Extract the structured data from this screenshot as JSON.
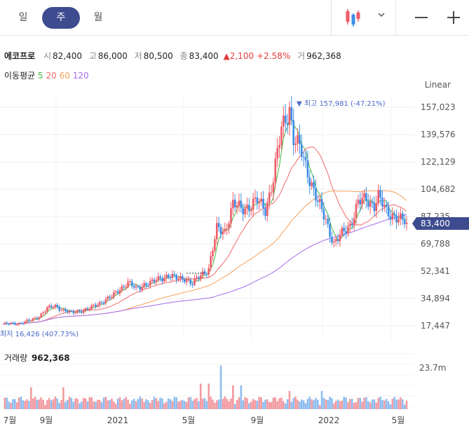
{
  "tabs": [
    {
      "label": "일",
      "active": false
    },
    {
      "label": "주",
      "active": true
    },
    {
      "label": "월",
      "active": false
    }
  ],
  "toolbar": {
    "chart_type_icon": "candlestick-icon",
    "dropdown_icon": "chevron-down-icon",
    "minus_label": "−",
    "plus_label": "+"
  },
  "stock": {
    "name": "에코프로",
    "open_label": "시",
    "open": "82,400",
    "high_label": "고",
    "high": "86,000",
    "low_label": "저",
    "low": "80,500",
    "close_label": "종",
    "close": "83,400",
    "change": "▲2,100",
    "change_pct": "+2.58%",
    "volume_label": "거",
    "volume": "962,368"
  },
  "ma": {
    "label": "이동평균",
    "periods": [
      "5",
      "20",
      "60",
      "120"
    ],
    "colors": [
      "#44b944",
      "#f06a6a",
      "#f5a05a",
      "#a66bef"
    ]
  },
  "scale_mode": "Linear",
  "volume_panel": {
    "label": "거래량",
    "value": "962,368"
  },
  "colors": {
    "up": "#ef5b67",
    "down": "#3f8de6",
    "accent": "#3d4b8f"
  },
  "chart_data": {
    "type": "candlestick",
    "y_ticks": [
      "157,023",
      "139,576",
      "122,129",
      "104,682",
      "87,235",
      "69,788",
      "52,341",
      "34,894",
      "17,447"
    ],
    "ylim": [
      14000,
      165000
    ],
    "x_ticks": [
      "7월",
      "9월",
      "2021",
      "5월",
      "9월",
      "2022",
      "5월"
    ],
    "high_marker": {
      "label": "최고",
      "value": "157,981 (-47.21%)"
    },
    "low_marker": {
      "label": "최저",
      "value": "16,426 (407.73%)"
    },
    "current_price": "83,400",
    "volume_ytick": "23.7m",
    "volume_ylim": [
      0,
      30
    ]
  }
}
